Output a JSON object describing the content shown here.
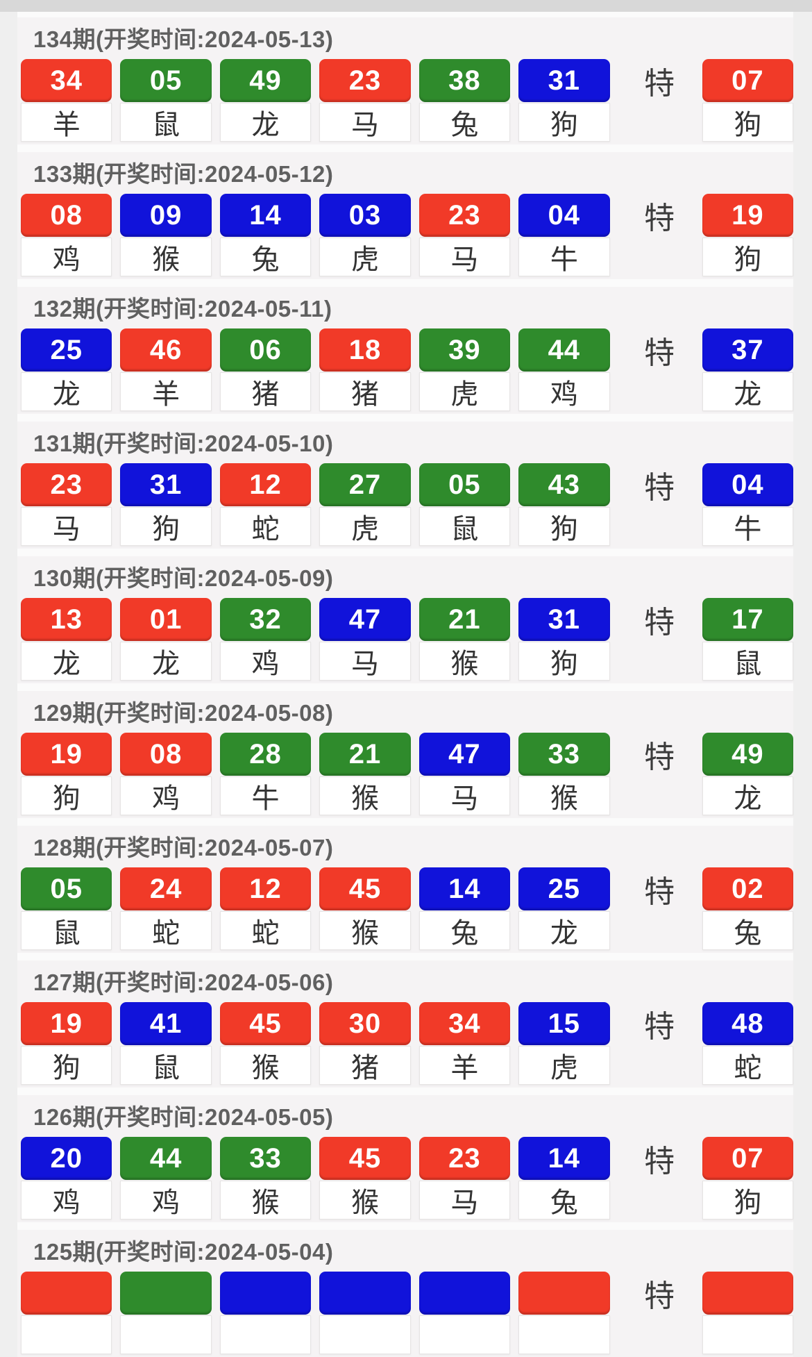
{
  "labels": {
    "special": "特"
  },
  "colors": {
    "red": "#f13a28",
    "green": "#2f8b2c",
    "blue": "#1113da"
  },
  "draws": [
    {
      "period": "134",
      "date": "2024-05-13",
      "header": "134期(开奖时间:2024-05-13)",
      "balls": [
        {
          "num": "34",
          "color": "red",
          "zodiac": "羊"
        },
        {
          "num": "05",
          "color": "green",
          "zodiac": "鼠"
        },
        {
          "num": "49",
          "color": "green",
          "zodiac": "龙"
        },
        {
          "num": "23",
          "color": "red",
          "zodiac": "马"
        },
        {
          "num": "38",
          "color": "green",
          "zodiac": "兔"
        },
        {
          "num": "31",
          "color": "blue",
          "zodiac": "狗"
        }
      ],
      "special": {
        "num": "07",
        "color": "red",
        "zodiac": "狗"
      }
    },
    {
      "period": "133",
      "date": "2024-05-12",
      "header": "133期(开奖时间:2024-05-12)",
      "balls": [
        {
          "num": "08",
          "color": "red",
          "zodiac": "鸡"
        },
        {
          "num": "09",
          "color": "blue",
          "zodiac": "猴"
        },
        {
          "num": "14",
          "color": "blue",
          "zodiac": "兔"
        },
        {
          "num": "03",
          "color": "blue",
          "zodiac": "虎"
        },
        {
          "num": "23",
          "color": "red",
          "zodiac": "马"
        },
        {
          "num": "04",
          "color": "blue",
          "zodiac": "牛"
        }
      ],
      "special": {
        "num": "19",
        "color": "red",
        "zodiac": "狗"
      }
    },
    {
      "period": "132",
      "date": "2024-05-11",
      "header": "132期(开奖时间:2024-05-11)",
      "balls": [
        {
          "num": "25",
          "color": "blue",
          "zodiac": "龙"
        },
        {
          "num": "46",
          "color": "red",
          "zodiac": "羊"
        },
        {
          "num": "06",
          "color": "green",
          "zodiac": "猪"
        },
        {
          "num": "18",
          "color": "red",
          "zodiac": "猪"
        },
        {
          "num": "39",
          "color": "green",
          "zodiac": "虎"
        },
        {
          "num": "44",
          "color": "green",
          "zodiac": "鸡"
        }
      ],
      "special": {
        "num": "37",
        "color": "blue",
        "zodiac": "龙"
      }
    },
    {
      "period": "131",
      "date": "2024-05-10",
      "header": "131期(开奖时间:2024-05-10)",
      "balls": [
        {
          "num": "23",
          "color": "red",
          "zodiac": "马"
        },
        {
          "num": "31",
          "color": "blue",
          "zodiac": "狗"
        },
        {
          "num": "12",
          "color": "red",
          "zodiac": "蛇"
        },
        {
          "num": "27",
          "color": "green",
          "zodiac": "虎"
        },
        {
          "num": "05",
          "color": "green",
          "zodiac": "鼠"
        },
        {
          "num": "43",
          "color": "green",
          "zodiac": "狗"
        }
      ],
      "special": {
        "num": "04",
        "color": "blue",
        "zodiac": "牛"
      }
    },
    {
      "period": "130",
      "date": "2024-05-09",
      "header": "130期(开奖时间:2024-05-09)",
      "balls": [
        {
          "num": "13",
          "color": "red",
          "zodiac": "龙"
        },
        {
          "num": "01",
          "color": "red",
          "zodiac": "龙"
        },
        {
          "num": "32",
          "color": "green",
          "zodiac": "鸡"
        },
        {
          "num": "47",
          "color": "blue",
          "zodiac": "马"
        },
        {
          "num": "21",
          "color": "green",
          "zodiac": "猴"
        },
        {
          "num": "31",
          "color": "blue",
          "zodiac": "狗"
        }
      ],
      "special": {
        "num": "17",
        "color": "green",
        "zodiac": "鼠"
      }
    },
    {
      "period": "129",
      "date": "2024-05-08",
      "header": "129期(开奖时间:2024-05-08)",
      "balls": [
        {
          "num": "19",
          "color": "red",
          "zodiac": "狗"
        },
        {
          "num": "08",
          "color": "red",
          "zodiac": "鸡"
        },
        {
          "num": "28",
          "color": "green",
          "zodiac": "牛"
        },
        {
          "num": "21",
          "color": "green",
          "zodiac": "猴"
        },
        {
          "num": "47",
          "color": "blue",
          "zodiac": "马"
        },
        {
          "num": "33",
          "color": "green",
          "zodiac": "猴"
        }
      ],
      "special": {
        "num": "49",
        "color": "green",
        "zodiac": "龙"
      }
    },
    {
      "period": "128",
      "date": "2024-05-07",
      "header": "128期(开奖时间:2024-05-07)",
      "balls": [
        {
          "num": "05",
          "color": "green",
          "zodiac": "鼠"
        },
        {
          "num": "24",
          "color": "red",
          "zodiac": "蛇"
        },
        {
          "num": "12",
          "color": "red",
          "zodiac": "蛇"
        },
        {
          "num": "45",
          "color": "red",
          "zodiac": "猴"
        },
        {
          "num": "14",
          "color": "blue",
          "zodiac": "兔"
        },
        {
          "num": "25",
          "color": "blue",
          "zodiac": "龙"
        }
      ],
      "special": {
        "num": "02",
        "color": "red",
        "zodiac": "兔"
      }
    },
    {
      "period": "127",
      "date": "2024-05-06",
      "header": "127期(开奖时间:2024-05-06)",
      "balls": [
        {
          "num": "19",
          "color": "red",
          "zodiac": "狗"
        },
        {
          "num": "41",
          "color": "blue",
          "zodiac": "鼠"
        },
        {
          "num": "45",
          "color": "red",
          "zodiac": "猴"
        },
        {
          "num": "30",
          "color": "red",
          "zodiac": "猪"
        },
        {
          "num": "34",
          "color": "red",
          "zodiac": "羊"
        },
        {
          "num": "15",
          "color": "blue",
          "zodiac": "虎"
        }
      ],
      "special": {
        "num": "48",
        "color": "blue",
        "zodiac": "蛇"
      }
    },
    {
      "period": "126",
      "date": "2024-05-05",
      "header": "126期(开奖时间:2024-05-05)",
      "balls": [
        {
          "num": "20",
          "color": "blue",
          "zodiac": "鸡"
        },
        {
          "num": "44",
          "color": "green",
          "zodiac": "鸡"
        },
        {
          "num": "33",
          "color": "green",
          "zodiac": "猴"
        },
        {
          "num": "45",
          "color": "red",
          "zodiac": "猴"
        },
        {
          "num": "23",
          "color": "red",
          "zodiac": "马"
        },
        {
          "num": "14",
          "color": "blue",
          "zodiac": "兔"
        }
      ],
      "special": {
        "num": "07",
        "color": "red",
        "zodiac": "狗"
      }
    },
    {
      "period": "125",
      "date": "2024-05-04",
      "header": "125期(开奖时间:2024-05-04)",
      "balls": [
        {
          "num": "",
          "color": "red",
          "zodiac": ""
        },
        {
          "num": "",
          "color": "green",
          "zodiac": ""
        },
        {
          "num": "",
          "color": "blue",
          "zodiac": ""
        },
        {
          "num": "",
          "color": "blue",
          "zodiac": ""
        },
        {
          "num": "",
          "color": "blue",
          "zodiac": ""
        },
        {
          "num": "",
          "color": "red",
          "zodiac": ""
        }
      ],
      "special": {
        "num": "",
        "color": "red",
        "zodiac": ""
      }
    }
  ]
}
